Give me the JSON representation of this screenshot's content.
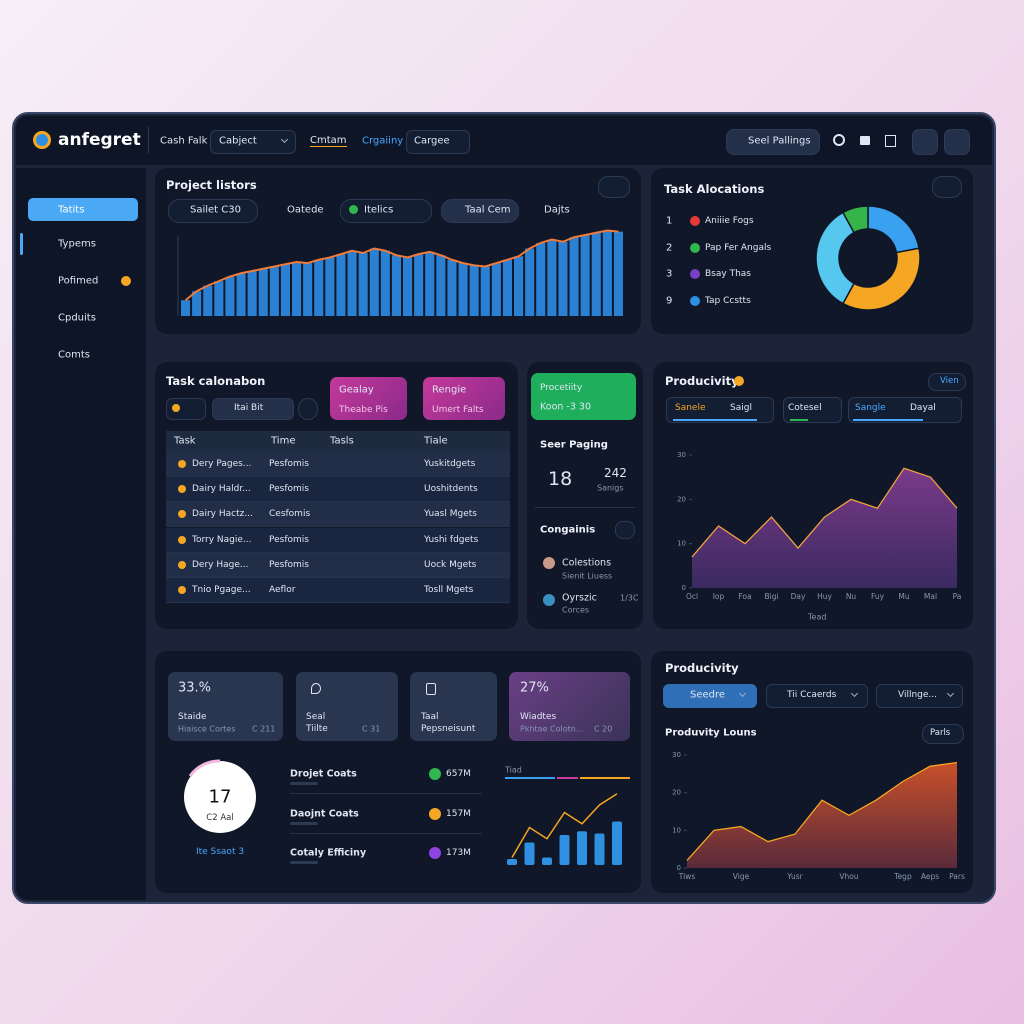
{
  "header": {
    "logo": "anfegret",
    "nav": [
      "Cash Falk",
      "Cabject",
      "Cmtam",
      "Crgaiiny",
      "Cargee"
    ],
    "action": "Seel Pallings"
  },
  "sidebar": [
    "Tatits",
    "Typems",
    "Pofimed",
    "Cpduits",
    "Comts"
  ],
  "project_history": {
    "title": "Project listors",
    "filters": [
      "Sailet C30",
      "Oatede",
      "Itelics",
      "Taal Cem",
      "Dajts"
    ],
    "ylim": [
      0,
      80
    ],
    "values": [
      14,
      22,
      27,
      31,
      35,
      38,
      40,
      42,
      44,
      46,
      48,
      47,
      50,
      52,
      55,
      58,
      56,
      60,
      58,
      54,
      52,
      55,
      57,
      54,
      50,
      47,
      45,
      44,
      47,
      50,
      53,
      60,
      65,
      68,
      66,
      70,
      72,
      74,
      76,
      75
    ]
  },
  "task_allocations": {
    "title": "Task Alocations",
    "items": [
      {
        "number": 1,
        "label": "Aniiie Fogs",
        "color": "#e53935"
      },
      {
        "number": 2,
        "label": "Pap Fer Angals",
        "color": "#2eb84f"
      },
      {
        "number": 3,
        "label": "Bsay Thas",
        "color": "#7b3fc4"
      },
      {
        "number": 9,
        "label": "Tap Ccstts",
        "color": "#2f8fe0"
      }
    ],
    "segments": [
      {
        "value": 22,
        "color": "#3aa0f0"
      },
      {
        "value": 36,
        "color": "#f5a623"
      },
      {
        "value": 34,
        "color": "#56c8f0"
      },
      {
        "value": 8,
        "color": "#36b44a"
      }
    ]
  },
  "task_table": {
    "title": "Task calonabon",
    "filter": "Itai Bit",
    "cards": [
      {
        "title": "Gealay",
        "subtitle": "Theabe Pis"
      },
      {
        "title": "Rengie",
        "subtitle": "Umert Falts"
      }
    ],
    "columns": [
      "Task",
      "Time",
      "Tasls",
      "Tiale"
    ],
    "rows": [
      [
        "Dery Pages...",
        "Pesfomis",
        "Yuskitdgets"
      ],
      [
        "Dairy Haldr...",
        "Pesfomis",
        "Uoshitdents"
      ],
      [
        "Dairy Hactz...",
        "Cesfomis",
        "Yuasl Mgets"
      ],
      [
        "Torry Nagie...",
        "Pesfomis",
        "Yushi fdgets"
      ],
      [
        "Dery Hage...",
        "Pesfomis",
        "Uock Mgets"
      ],
      [
        "Tnio Pgage...",
        "Aeflor",
        "Tosll Mgets"
      ]
    ]
  },
  "middle": {
    "badge": {
      "title": "Procetiity",
      "subtitle": "Koon -3 30"
    },
    "heading": "Seer Paging",
    "big": 18,
    "stat": {
      "value": 242,
      "label": "Sanigs"
    },
    "section": "Congainis",
    "people": [
      {
        "name": "Colestions",
        "detail": "Sienit Liuess"
      },
      {
        "name": "Oyrszic",
        "detail": "Corces",
        "tag": "1/3C"
      }
    ]
  },
  "productivity": {
    "title": "Producivity",
    "button": "Vien",
    "tabs": [
      "Sanele",
      "Saigl",
      "Cotesel",
      "Sangle",
      "Dayal"
    ],
    "x": [
      "Ocl",
      "Iop",
      "Foa",
      "Bigi",
      "Day",
      "Huy",
      "Nu",
      "Fuy",
      "Mu",
      "Mal",
      "Pa"
    ],
    "x_title": "Tead",
    "values": [
      7,
      14,
      10,
      16,
      9,
      16,
      20,
      18,
      27,
      25,
      18
    ],
    "ylim": [
      0,
      30
    ],
    "yticks": [
      0,
      10,
      20,
      30
    ]
  },
  "summary": {
    "cards": [
      {
        "value": "33.%",
        "title": "Staide",
        "subtitle": "Hiaisce Cortes",
        "tag": "C 211"
      },
      {
        "title": "Seal",
        "subtitle": "Tiilte",
        "tag": "C 31"
      },
      {
        "title": "Taal",
        "subtitle": "Pepsneisunt"
      },
      {
        "value": "27%",
        "title": "Wiadtes",
        "subtitle": "Pkhtae Colotn...",
        "tag": "C 20"
      }
    ],
    "gauge": {
      "value": 17,
      "label": "C2 Aal",
      "link": "Ite Ssaot 3"
    },
    "metrics": [
      {
        "name": "Drojet Coats",
        "value": "657M",
        "color": "#2eb84f"
      },
      {
        "name": "Daojnt Coats",
        "value": "157M",
        "color": "#f5a623"
      },
      {
        "name": "Cotaly Efficiny",
        "value": "173M",
        "color": "#8e44e0"
      }
    ],
    "mini_chart": {
      "label": "Tiad",
      "ylim": [
        0,
        100
      ],
      "bars": [
        8,
        30,
        10,
        40,
        45,
        42,
        58
      ],
      "trend": [
        10,
        50,
        35,
        70,
        55,
        80,
        95
      ]
    }
  },
  "productivity_trend": {
    "title": "Producivity",
    "dropdowns": [
      "Seedre",
      "Tii Ccaerds",
      "Villnge..."
    ],
    "subtitle": "Produvity Louns",
    "button": "Parls",
    "x": [
      "Tiws",
      null,
      "Vige",
      null,
      "Yusr",
      null,
      "Vhou",
      null,
      "Tegp",
      "Aeps",
      "Pars"
    ],
    "values": [
      2,
      10,
      11,
      7,
      9,
      18,
      14,
      18,
      23,
      27,
      28
    ],
    "ylim": [
      0,
      30
    ],
    "yticks": [
      0,
      10,
      20,
      30
    ]
  }
}
